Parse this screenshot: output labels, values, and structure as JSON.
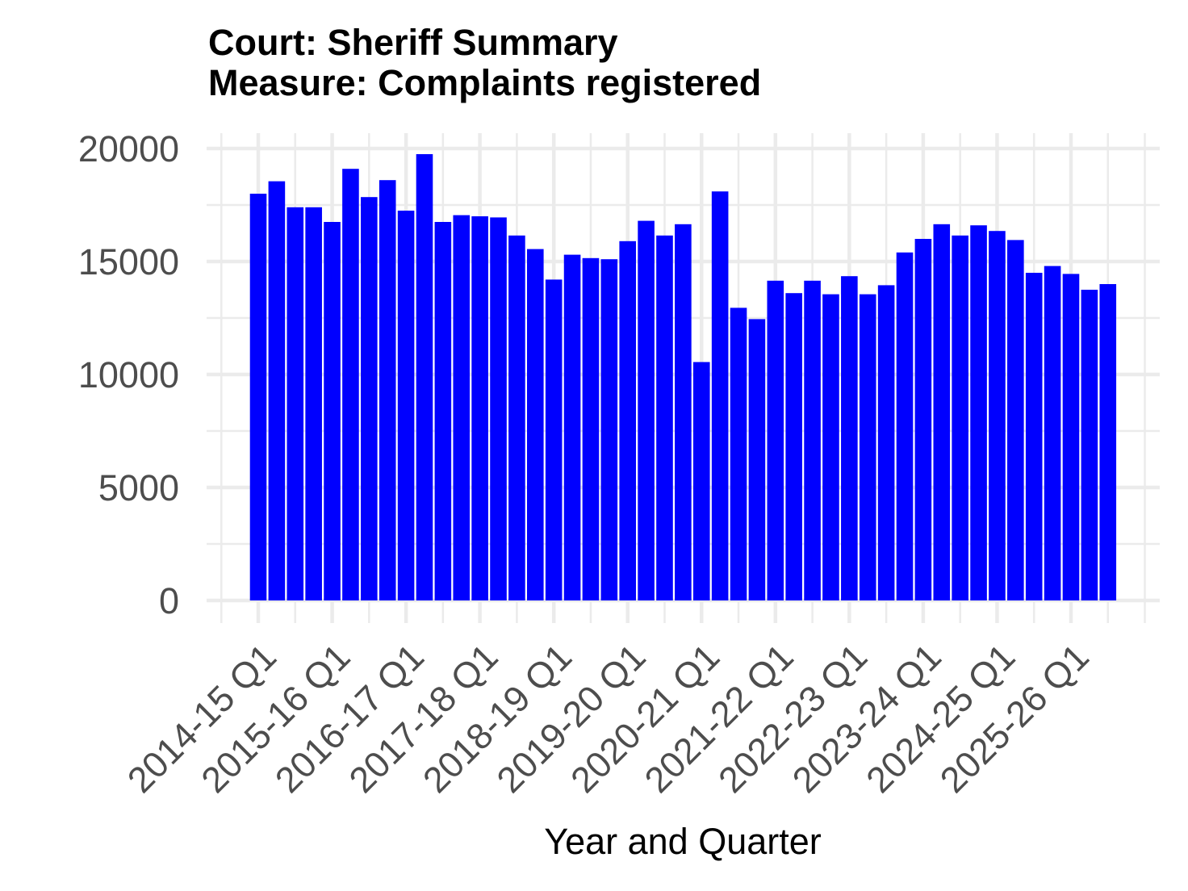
{
  "chart_data": {
    "type": "bar",
    "title_lines": [
      "Court: Sheriff Summary",
      "Measure: Complaints registered"
    ],
    "xlabel": "Year and Quarter",
    "x_tick_labels": [
      "2014-15 Q1",
      "2015-16 Q1",
      "2016-17 Q1",
      "2017-18 Q1",
      "2018-19 Q1",
      "2019-20 Q1",
      "2020-21 Q1",
      "2021-22 Q1",
      "2022-23 Q1",
      "2023-24 Q1",
      "2024-25 Q1",
      "2025-26 Q1"
    ],
    "x_tick_every": 4,
    "values": [
      18000,
      18550,
      17400,
      17400,
      16750,
      19100,
      17850,
      18600,
      17250,
      19750,
      16750,
      17050,
      17000,
      16950,
      16150,
      15550,
      14200,
      15300,
      15150,
      15100,
      15900,
      16800,
      16150,
      16650,
      10550,
      18100,
      12950,
      12450,
      14150,
      13600,
      14150,
      13550,
      14350,
      13550,
      13950,
      15400,
      16000,
      16650,
      16150,
      16600,
      16350,
      15950,
      14500,
      14800,
      14450,
      13750,
      14000
    ],
    "ylim": [
      0,
      20000
    ],
    "y_ticks": [
      0,
      5000,
      10000,
      15000,
      20000
    ],
    "grid": true,
    "bar_color": "#0000FF",
    "grid_color": "#EBEBEB",
    "axis_text_color": "#4D4D4D",
    "title_color": "#000000"
  }
}
